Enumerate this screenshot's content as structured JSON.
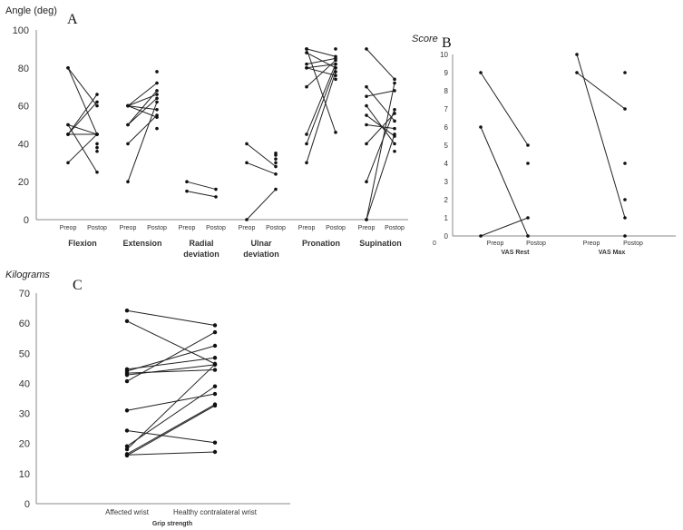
{
  "chart_data": [
    {
      "panel": "A",
      "type": "line",
      "ylabel": "Angle (deg)",
      "ylim": [
        0,
        100
      ],
      "yticks": [
        0,
        20,
        40,
        60,
        80,
        100
      ],
      "tick_labels": [
        "Preop",
        "Postop"
      ],
      "groups": [
        {
          "name": "Flexion",
          "pairs": [
            [
              80,
              60
            ],
            [
              80,
              45
            ],
            [
              50,
              45
            ],
            [
              50,
              25
            ],
            [
              45,
              45
            ],
            [
              45,
              62
            ],
            [
              45,
              66
            ],
            [
              30,
              45
            ]
          ],
          "extra_postop": [
            40,
            38,
            36
          ]
        },
        {
          "name": "Extension",
          "pairs": [
            [
              60,
              72
            ],
            [
              60,
              66
            ],
            [
              60,
              58
            ],
            [
              60,
              54
            ],
            [
              50,
              64
            ],
            [
              50,
              68
            ],
            [
              40,
              55
            ],
            [
              20,
              62
            ]
          ],
          "extra_postop": [
            78,
            48
          ]
        },
        {
          "name": "Radial deviation",
          "pairs": [
            [
              20,
              16
            ],
            [
              15,
              12
            ]
          ],
          "extra_postop": []
        },
        {
          "name": "Ulnar deviation",
          "pairs": [
            [
              40,
              28
            ],
            [
              30,
              24
            ],
            [
              0,
              16
            ]
          ],
          "extra_postop": [
            35,
            34,
            32,
            30
          ]
        },
        {
          "name": "Pronation",
          "pairs": [
            [
              90,
              86
            ],
            [
              90,
              46
            ],
            [
              88,
              80
            ],
            [
              82,
              85
            ],
            [
              80,
              82
            ],
            [
              80,
              76
            ],
            [
              70,
              84
            ],
            [
              45,
              82
            ],
            [
              40,
              80
            ],
            [
              30,
              78
            ]
          ],
          "extra_postop": [
            90,
            74
          ]
        },
        {
          "name": "Supination",
          "pairs": [
            [
              90,
              74
            ],
            [
              70,
              52
            ],
            [
              65,
              68
            ],
            [
              60,
              40
            ],
            [
              55,
              44
            ],
            [
              50,
              48
            ],
            [
              40,
              56
            ],
            [
              20,
              58
            ],
            [
              0,
              72
            ],
            [
              0,
              45
            ]
          ],
          "extra_postop": [
            36
          ]
        }
      ]
    },
    {
      "panel": "B",
      "type": "line",
      "ylabel": "Score",
      "ylim": [
        0,
        10
      ],
      "yticks": [
        0,
        1,
        2,
        3,
        4,
        5,
        6,
        7,
        8,
        9,
        10
      ],
      "tick_labels": [
        "Preop",
        "Postop"
      ],
      "corner_tick": "0",
      "groups": [
        {
          "name": "VAS Rest",
          "pairs": [
            [
              9,
              5
            ],
            [
              6,
              0
            ],
            [
              0,
              1
            ]
          ],
          "extra_postop": [
            4
          ]
        },
        {
          "name": "VAS Max",
          "pairs": [
            [
              10,
              1
            ],
            [
              9,
              7
            ]
          ],
          "extra_postop": [
            9,
            4,
            2,
            0
          ]
        }
      ]
    },
    {
      "panel": "C",
      "type": "line",
      "ylabel": "Kilograms",
      "xlabel": "Grip strength",
      "ylim": [
        0,
        70
      ],
      "yticks": [
        0,
        10,
        20,
        30,
        40,
        50,
        60,
        70
      ],
      "categories": [
        "Affected wrist",
        "Healthy contralateral wrist"
      ],
      "pairs": [
        [
          64.2,
          59.3
        ],
        [
          60.7,
          46.5
        ],
        [
          44.7,
          48.5
        ],
        [
          44.1,
          52.5
        ],
        [
          43.4,
          44.5
        ],
        [
          42.8,
          46.2
        ],
        [
          40.7,
          57.0
        ],
        [
          31.0,
          36.5
        ],
        [
          24.3,
          20.3
        ],
        [
          19.1,
          39.0
        ],
        [
          18.1,
          46.3
        ],
        [
          16.5,
          33.0
        ],
        [
          16.0,
          32.6
        ],
        [
          16.2,
          17.2
        ]
      ]
    }
  ]
}
